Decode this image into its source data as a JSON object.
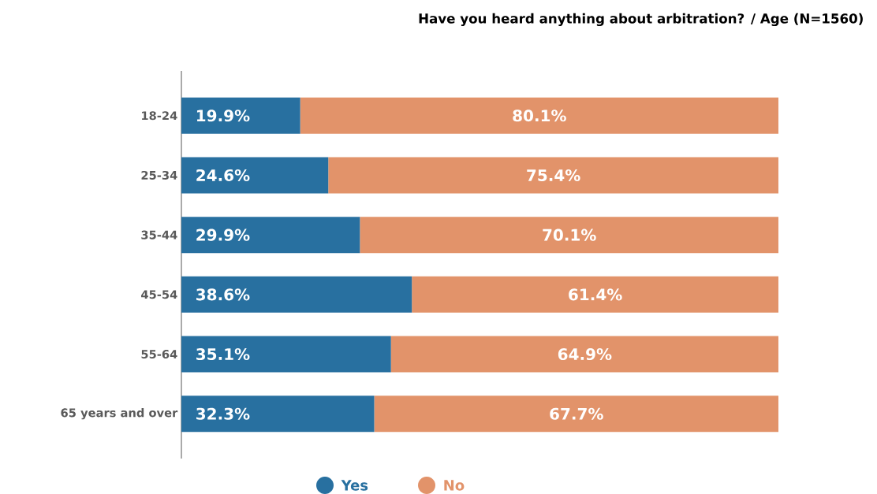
{
  "chart_data": {
    "type": "bar",
    "orientation": "horizontal",
    "stacked": true,
    "title": "Have you heard anything about arbitration? / Age (N=1560)",
    "categories": [
      "18-24",
      "25-34",
      "35-44",
      "45-54",
      "55-64",
      "65 years and over"
    ],
    "series": [
      {
        "name": "Yes",
        "color": "#2870a0",
        "values": [
          19.9,
          24.6,
          29.9,
          38.6,
          35.1,
          32.3
        ],
        "value_labels": [
          "19.9%",
          "24.6%",
          "29.9%",
          "38.6%",
          "35.1%",
          "32.3%"
        ]
      },
      {
        "name": "No",
        "color": "#e2936a",
        "values": [
          80.1,
          75.4,
          70.1,
          61.4,
          64.9,
          67.7
        ],
        "value_labels": [
          "80.1%",
          "75.4%",
          "70.1%",
          "61.4%",
          "64.9%",
          "67.7%"
        ]
      }
    ],
    "xlim": [
      0,
      100
    ],
    "tick_labels": "y",
    "legend": "bottom"
  }
}
